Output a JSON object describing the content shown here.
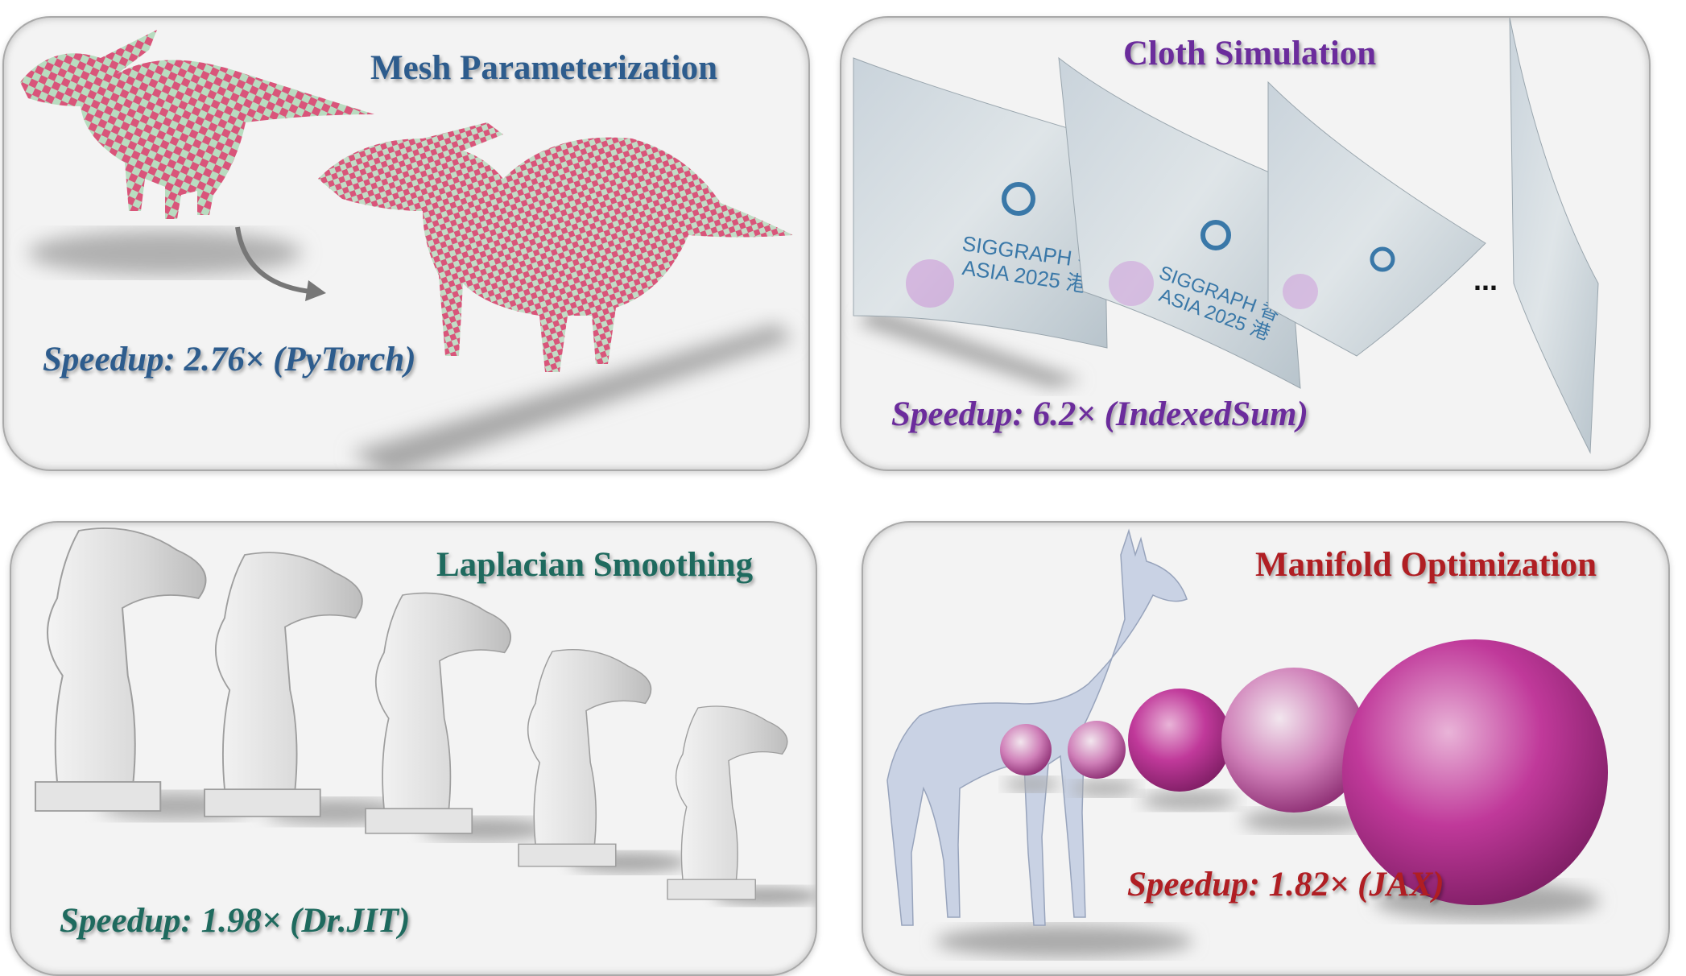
{
  "colors": {
    "blue": "#2d5c8d",
    "purple": "#6b2c9c",
    "teal": "#1e6a5e",
    "red": "#b01e23",
    "checker_pink": "#d9557a",
    "checker_green": "#b8dcc0",
    "sphere_magenta": "#c0399a"
  },
  "panels": {
    "mesh": {
      "title": "Mesh Parameterization",
      "speedup": "Speedup: 2.76× (PyTorch)"
    },
    "cloth": {
      "title": "Cloth Simulation",
      "speedup": "Speedup: 6.2× (IndexedSum)",
      "banner_line1": "SIGGRAPH 香",
      "banner_line2": "ASIA 2025 港",
      "ellipsis": "..."
    },
    "laplacian": {
      "title": "Laplacian Smoothing",
      "speedup": "Speedup: 1.98× (Dr.JIT)"
    },
    "manifold": {
      "title": "Manifold Optimization",
      "speedup": "Speedup: 1.82× (JAX)"
    }
  }
}
